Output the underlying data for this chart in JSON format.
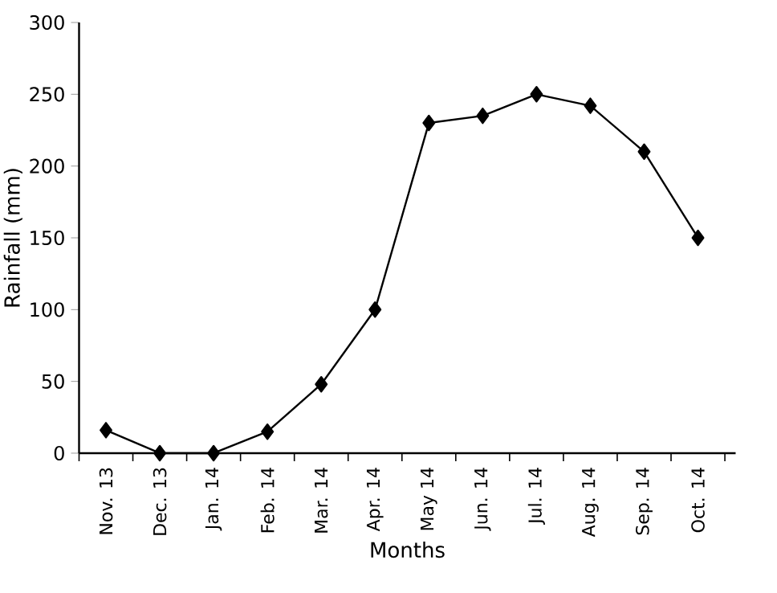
{
  "chart_data": {
    "type": "line",
    "xlabel": "Months",
    "ylabel": "Rainfall (mm)",
    "categories": [
      "Nov. 13",
      "Dec. 13",
      "Jan. 14",
      "Feb. 14",
      "Mar. 14",
      "Apr. 14",
      "May 14",
      "Jun. 14",
      "Jul. 14",
      "Aug. 14",
      "Sep. 14",
      "Oct. 14"
    ],
    "values": [
      16,
      0,
      0,
      15,
      48,
      100,
      230,
      235,
      250,
      242,
      210,
      150
    ],
    "color": "#000000",
    "marker": "diamond",
    "line_style": "solid",
    "grid": false,
    "ylim": [
      0,
      300
    ],
    "yticks": [
      0,
      50,
      100,
      150,
      200,
      250,
      300
    ]
  }
}
